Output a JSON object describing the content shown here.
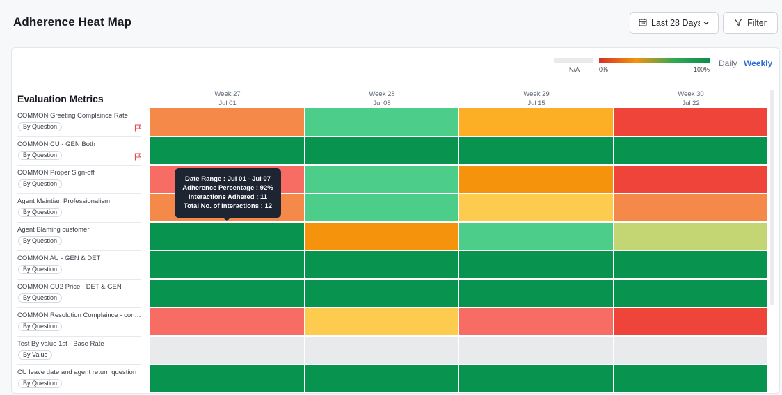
{
  "header": {
    "title": "Adherence Heat Map",
    "date_range_label": "Last 28 Days",
    "filter_label": "Filter"
  },
  "legend": {
    "na_label": "N/A",
    "min_label": "0%",
    "max_label": "100%",
    "na_color": "#e9eaec"
  },
  "view_toggle": {
    "daily_label": "Daily",
    "weekly_label": "Weekly",
    "selected": "Weekly"
  },
  "metrics_title": "Evaluation Metrics",
  "weeks": [
    {
      "week": "Week 27",
      "date": "Jul 01"
    },
    {
      "week": "Week 28",
      "date": "Jul 08"
    },
    {
      "week": "Week 29",
      "date": "Jul 15"
    },
    {
      "week": "Week 30",
      "date": "Jul 22"
    }
  ],
  "metrics": [
    {
      "name": "COMMON Greeting Complaince Rate",
      "tag": "By Question",
      "flagged": true,
      "cells": [
        "#f4894a",
        "#4ccd8a",
        "#fcae24",
        "#ef443a"
      ]
    },
    {
      "name": "COMMON CU - GEN Both",
      "tag": "By Question",
      "flagged": true,
      "cells": [
        "#08944f",
        "#08944f",
        "#08944f",
        "#08944f"
      ]
    },
    {
      "name": "COMMON Proper Sign-off",
      "tag": "By Question",
      "flagged": false,
      "cells": [
        "#f76d63",
        "#4ccd8a",
        "#f5930c",
        "#ef443a"
      ]
    },
    {
      "name": "Agent Maintian Professionalism",
      "tag": "By Question",
      "flagged": false,
      "cells": [
        "#f4894a",
        "#4ccd8a",
        "#fdcb4d",
        "#f4894a"
      ]
    },
    {
      "name": "Agent Blaming customer",
      "tag": "By Question",
      "flagged": false,
      "cells": [
        "#08944f",
        "#f5930c",
        "#4ccd8a",
        "#c4d574"
      ]
    },
    {
      "name": "COMMON AU - GEN & DET",
      "tag": "By Question",
      "flagged": false,
      "cells": [
        "#08944f",
        "#08944f",
        "#08944f",
        "#08944f"
      ]
    },
    {
      "name": "COMMON CU2 Price - DET & GEN",
      "tag": "By Question",
      "flagged": false,
      "cells": [
        "#08944f",
        "#08944f",
        "#08944f",
        "#08944f"
      ]
    },
    {
      "name": "COMMON Resolution Complaince - conf...",
      "tag": "By Question",
      "flagged": false,
      "cells": [
        "#f76d63",
        "#fdcb4d",
        "#f76d63",
        "#ef443a"
      ]
    },
    {
      "name": "Test By value 1st - Base Rate",
      "tag": "By Value",
      "flagged": false,
      "cells": [
        "#e9eaec",
        "#e9eaec",
        "#e9eaec",
        "#e9eaec"
      ]
    },
    {
      "name": "CU leave date and agent return question",
      "tag": "By Question",
      "flagged": false,
      "cells": [
        "#08944f",
        "#08944f",
        "#08944f",
        "#08944f"
      ]
    }
  ],
  "tooltip": {
    "line1": "Date Range : Jul 01 - Jul 07",
    "line2": "Adherence Percentage : 92%",
    "line3": "Interactions Adhered : 11",
    "line4": "Total No. of interactions : 12"
  },
  "icons": {
    "date": "calendar-icon",
    "dropdown": "chevron-down-icon",
    "filter": "filter-icon",
    "flag": "flag-icon"
  },
  "colors": {
    "flag": "#e5484d",
    "accent": "#2e6fd6"
  }
}
